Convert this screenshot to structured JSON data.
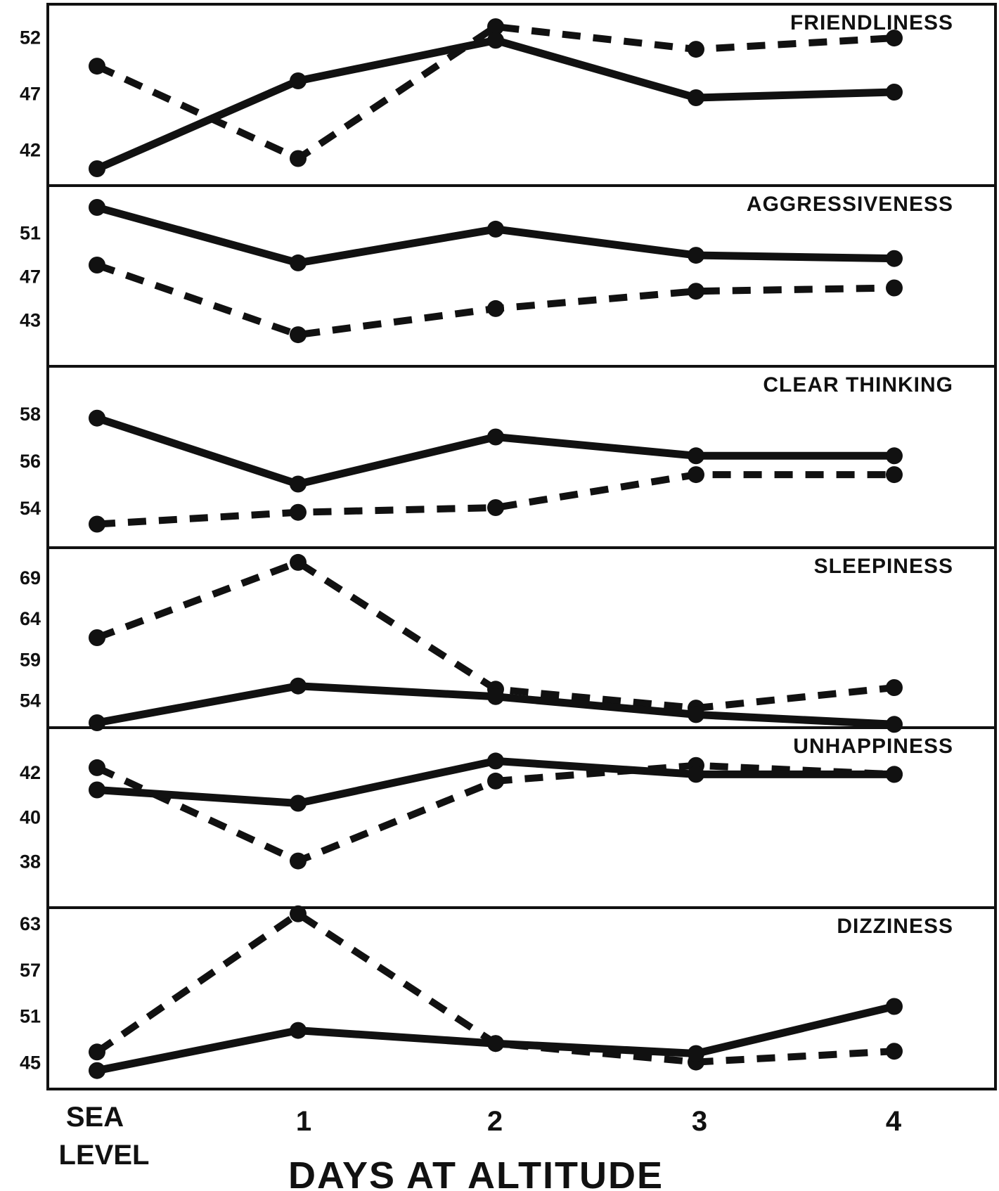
{
  "chart_data": {
    "type": "line",
    "x": [
      "SEA LEVEL",
      "1",
      "2",
      "3",
      "4"
    ],
    "x_tick_labels": [
      "SEA",
      "LEVEL",
      "1",
      "2",
      "3",
      "4"
    ],
    "xlabel": "DAYS AT ALTITUDE",
    "panels": [
      {
        "title": "FRIENDLINESS",
        "yticks": [
          "52",
          "47",
          "42"
        ],
        "ylim": [
          38.8,
          54.9
        ],
        "series": [
          {
            "style": "solid",
            "values": [
              40.3,
              48.1,
              51.7,
              46.6,
              47.1
            ]
          },
          {
            "style": "dashed",
            "values": [
              49.4,
              41.2,
              52.9,
              50.9,
              51.9
            ]
          }
        ]
      },
      {
        "title": "AGGRESSIVENESS",
        "yticks": [
          "51",
          "47",
          "43"
        ],
        "ylim": [
          38.7,
          55.3
        ],
        "series": [
          {
            "style": "solid",
            "values": [
              53.3,
              48.2,
              51.3,
              48.9,
              48.6
            ]
          },
          {
            "style": "dashed",
            "values": [
              48.0,
              41.6,
              44.0,
              45.6,
              45.9
            ]
          }
        ]
      },
      {
        "title": "CLEAR THINKING",
        "yticks": [
          "58",
          "56",
          "54"
        ],
        "ylim": [
          52.3,
          60.0
        ],
        "series": [
          {
            "style": "solid",
            "values": [
              57.8,
              55.0,
              57.0,
              56.2,
              56.2
            ]
          },
          {
            "style": "dashed",
            "values": [
              53.3,
              53.8,
              54.0,
              55.4,
              55.4
            ]
          }
        ]
      },
      {
        "title": "SLEEPINESS",
        "yticks": [
          "69",
          "64",
          "59",
          "54"
        ],
        "ylim": [
          50.6,
          72.6
        ],
        "series": [
          {
            "style": "solid",
            "values": [
              51.2,
              55.7,
              54.4,
              52.2,
              51.0
            ]
          },
          {
            "style": "dashed",
            "values": [
              61.6,
              70.8,
              55.3,
              53.0,
              55.5
            ]
          }
        ]
      },
      {
        "title": "UNHAPPINESS",
        "yticks": [
          "42",
          "40",
          "38"
        ],
        "ylim": [
          35.9,
          44.0
        ],
        "series": [
          {
            "style": "solid",
            "values": [
              41.2,
              40.6,
              42.5,
              41.9,
              41.9
            ]
          },
          {
            "style": "dashed",
            "values": [
              42.2,
              38.0,
              41.6,
              42.3,
              41.9
            ]
          }
        ]
      },
      {
        "title": "DIZZINESS",
        "yticks": [
          "63",
          "57",
          "51",
          "45"
        ],
        "ylim": [
          41.5,
          65.0
        ],
        "series": [
          {
            "style": "solid",
            "values": [
              43.9,
              49.1,
              47.4,
              46.1,
              52.2
            ]
          },
          {
            "style": "dashed",
            "values": [
              46.3,
              64.2,
              47.4,
              45.0,
              46.4
            ]
          }
        ]
      }
    ]
  }
}
